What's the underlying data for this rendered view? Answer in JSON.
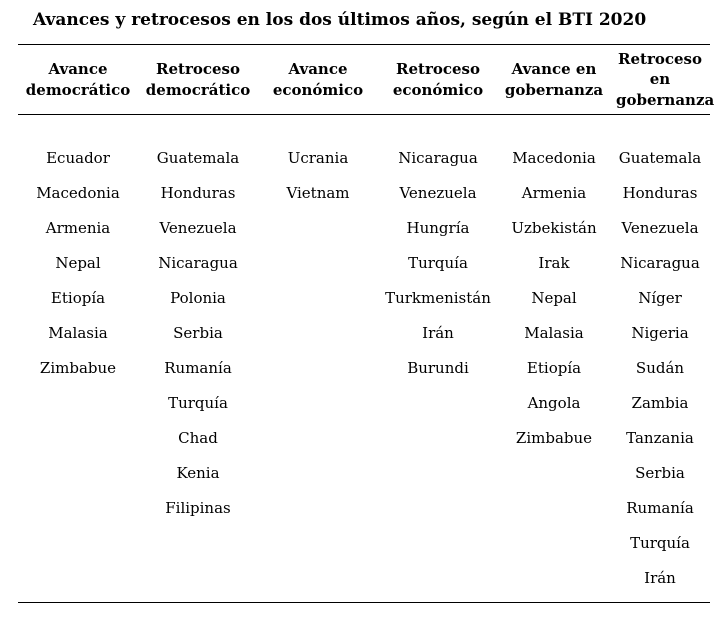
{
  "title": "Avances y retrocesos en los dos últimos años, según el BTI 2020",
  "chart_data": {
    "type": "table",
    "title": "Avances y retrocesos en los dos últimos años, según el BTI 2020",
    "row_count": 13,
    "columns": [
      {
        "header": "Avance democrático",
        "items": [
          "Ecuador",
          "Macedonia",
          "Armenia",
          "Nepal",
          "Etiopía",
          "Malasia",
          "Zimbabue"
        ]
      },
      {
        "header": "Retroceso democrático",
        "items": [
          "Guatemala",
          "Honduras",
          "Venezuela",
          "Nicaragua",
          "Polonia",
          "Serbia",
          "Rumanía",
          "Turquía",
          "Chad",
          "Kenia",
          "Filipinas"
        ]
      },
      {
        "header": "Avance económico",
        "items": [
          "Ucrania",
          "Vietnam"
        ]
      },
      {
        "header": "Retroceso económico",
        "items": [
          "Nicaragua",
          "Venezuela",
          "Hungría",
          "Turquía",
          "Turkmenistán",
          "Irán",
          "Burundi"
        ]
      },
      {
        "header": "Avance en gobernanza",
        "items": [
          "Macedonia",
          "Armenia",
          "Uzbekistán",
          "Irak",
          "Nepal",
          "Malasia",
          "Etiopía",
          "Angola",
          "Zimbabue"
        ]
      },
      {
        "header": "Retroceso en gobernanza",
        "items": [
          "Guatemala",
          "Honduras",
          "Venezuela",
          "Nicaragua",
          "Níger",
          "Nigeria",
          "Sudán",
          "Zambia",
          "Tanzania",
          "Serbia",
          "Rumanía",
          "Turquía",
          "Irán"
        ]
      }
    ],
    "layout": {
      "legend": "none",
      "grid": "horizontal-rules-only",
      "rules": [
        "above-header",
        "below-header",
        "below-last-row"
      ]
    }
  },
  "colors": {
    "background": "#ffffff",
    "text": "#000000",
    "rule": "#000000"
  }
}
